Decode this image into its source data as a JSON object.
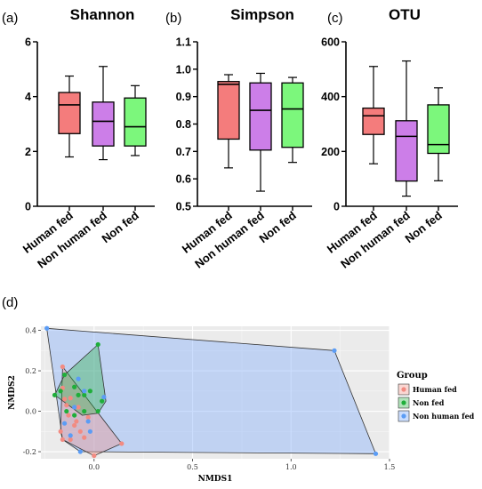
{
  "panel_labels": {
    "a": "(a)",
    "b": "(b)",
    "c": "(c)",
    "d": "(d)"
  },
  "colors": {
    "human_fed": "#f47c7c",
    "non_human_fed": "#cc7ee8",
    "non_fed": "#7cf77c",
    "pt_human": "#f28b82",
    "pt_non": "#1fae3a",
    "pt_nonhuman": "#5b9cf5"
  },
  "chart_data": [
    {
      "type": "box",
      "title": "Shannon",
      "categories": [
        "Human fed",
        "Non human fed",
        "Non fed"
      ],
      "ylim": [
        0,
        6
      ],
      "yticks": [
        0,
        2,
        4,
        6
      ],
      "boxes": [
        {
          "min": 1.8,
          "q1": 2.65,
          "median": 3.7,
          "q3": 4.15,
          "max": 4.75
        },
        {
          "min": 1.7,
          "q1": 2.2,
          "median": 3.1,
          "q3": 3.8,
          "max": 5.1
        },
        {
          "min": 1.85,
          "q1": 2.2,
          "median": 2.9,
          "q3": 3.95,
          "max": 4.4
        }
      ]
    },
    {
      "type": "box",
      "title": "Simpson",
      "categories": [
        "Human fed",
        "Non human fed",
        "Non fed"
      ],
      "ylim": [
        0.5,
        1.1
      ],
      "yticks": [
        "0.5",
        "0.6",
        "0.7",
        "0.8",
        "0.9",
        "1.0",
        "1.1"
      ],
      "boxes": [
        {
          "min": 0.64,
          "q1": 0.745,
          "median": 0.945,
          "q3": 0.955,
          "max": 0.98
        },
        {
          "min": 0.555,
          "q1": 0.705,
          "median": 0.85,
          "q3": 0.95,
          "max": 0.985
        },
        {
          "min": 0.66,
          "q1": 0.715,
          "median": 0.855,
          "q3": 0.95,
          "max": 0.97
        }
      ]
    },
    {
      "type": "box",
      "title": "OTU",
      "categories": [
        "Human fed",
        "Non human fed",
        "Non fed"
      ],
      "ylim": [
        0,
        600
      ],
      "yticks": [
        0,
        200,
        400,
        600
      ],
      "boxes": [
        {
          "min": 155,
          "q1": 262,
          "median": 330,
          "q3": 358,
          "max": 510
        },
        {
          "min": 37,
          "q1": 92,
          "median": 255,
          "q3": 312,
          "max": 530
        },
        {
          "min": 93,
          "q1": 193,
          "median": 225,
          "q3": 370,
          "max": 432
        }
      ]
    },
    {
      "type": "scatter",
      "xlabel": "NMDS1",
      "ylabel": "NMDS2",
      "xlim": [
        -0.27,
        1.5
      ],
      "ylim": [
        -0.235,
        0.42
      ],
      "xticks": [
        "0.0",
        "0.5",
        "1.0",
        "1.5"
      ],
      "yticks": [
        "-0.2",
        "0.0",
        "0.2",
        "0.4"
      ],
      "legend_title": "Group",
      "legend_position": "right",
      "series": [
        {
          "name": "Human fed",
          "points": [
            [
              -0.16,
              0.115
            ],
            [
              -0.15,
              0.06
            ],
            [
              -0.14,
              0.03
            ],
            [
              -0.13,
              -0.02
            ],
            [
              -0.17,
              -0.1
            ],
            [
              -0.16,
              -0.14
            ],
            [
              -0.12,
              -0.14
            ],
            [
              -0.1,
              -0.07
            ],
            [
              -0.07,
              -0.1
            ],
            [
              -0.05,
              -0.13
            ],
            [
              -0.08,
              0.02
            ],
            [
              -0.12,
              0.065
            ],
            [
              -0.09,
              -0.05
            ],
            [
              -0.03,
              -0.03
            ],
            [
              0.0,
              -0.22
            ],
            [
              0.14,
              -0.16
            ],
            [
              -0.16,
              0.22
            ]
          ],
          "hull": [
            [
              -0.16,
              0.22
            ],
            [
              0.14,
              -0.16
            ],
            [
              0.0,
              -0.22
            ],
            [
              -0.16,
              -0.14
            ],
            [
              -0.17,
              -0.1
            ]
          ]
        },
        {
          "name": "Non fed",
          "points": [
            [
              -0.2,
              0.08
            ],
            [
              -0.17,
              0.1
            ],
            [
              -0.15,
              0.18
            ],
            [
              -0.1,
              0.12
            ],
            [
              -0.08,
              0.08
            ],
            [
              -0.05,
              0.08
            ],
            [
              -0.02,
              0.1
            ],
            [
              0.02,
              0.33
            ],
            [
              0.04,
              0.05
            ],
            [
              0.02,
              0.0
            ],
            [
              -0.05,
              0.0
            ],
            [
              -0.1,
              -0.02
            ],
            [
              -0.14,
              0.0
            ]
          ],
          "hull": [
            [
              -0.15,
              0.18
            ],
            [
              0.02,
              0.33
            ],
            [
              0.06,
              0.05
            ],
            [
              0.02,
              -0.01
            ],
            [
              -0.06,
              -0.02
            ],
            [
              -0.2,
              0.08
            ]
          ]
        },
        {
          "name": "Non human fed",
          "points": [
            [
              -0.24,
              0.41
            ],
            [
              -0.08,
              0.16
            ],
            [
              -0.05,
              0.1
            ],
            [
              -0.03,
              -0.05
            ],
            [
              0.05,
              0.07
            ],
            [
              -0.1,
              0.02
            ],
            [
              -0.15,
              -0.06
            ],
            [
              -0.12,
              -0.12
            ],
            [
              -0.07,
              -0.2
            ],
            [
              1.22,
              0.3
            ],
            [
              1.43,
              -0.21
            ],
            [
              -0.02,
              -0.1
            ]
          ],
          "hull": [
            [
              -0.24,
              0.41
            ],
            [
              1.22,
              0.3
            ],
            [
              1.43,
              -0.21
            ],
            [
              -0.07,
              -0.2
            ],
            [
              -0.16,
              -0.14
            ]
          ]
        }
      ]
    }
  ]
}
